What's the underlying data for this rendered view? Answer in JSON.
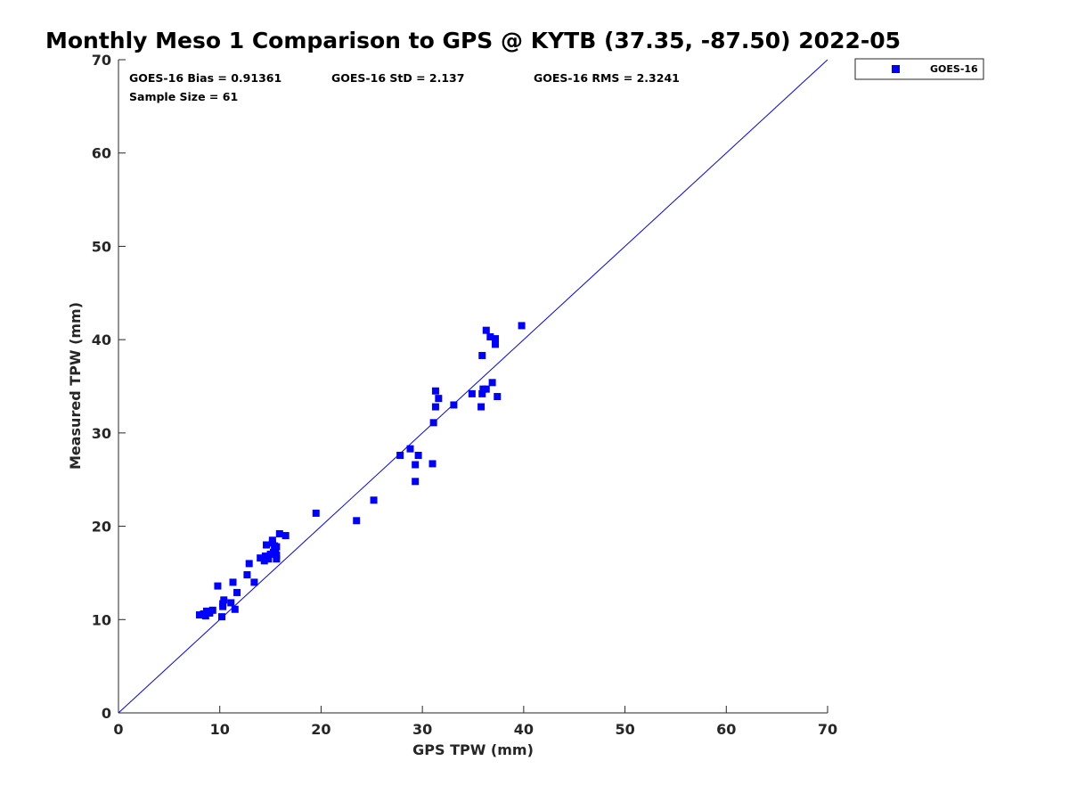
{
  "chart_data": {
    "type": "scatter",
    "title": "Monthly Meso 1 Comparison to GPS @ KYTB (37.35, -87.50) 2022-05",
    "xlabel": "GPS TPW (mm)",
    "ylabel": "Measured TPW (mm)",
    "xlim": [
      0,
      70
    ],
    "ylim": [
      0,
      70
    ],
    "xticks": [
      "0",
      "10",
      "20",
      "30",
      "40",
      "50",
      "60",
      "70"
    ],
    "yticks": [
      "0",
      "10",
      "20",
      "30",
      "40",
      "50",
      "60",
      "70"
    ],
    "grid": false,
    "legend_position": "outside-top-right",
    "reference_line": {
      "type": "one-to-one",
      "color": "#0000ff"
    },
    "stats": {
      "bias": "GOES-16 Bias = 0.91361",
      "std": "GOES-16 StD = 2.137",
      "rms": "GOES-16 RMS = 2.3241",
      "sample_size": "Sample Size = 61"
    },
    "series": [
      {
        "name": "GOES-16",
        "color": "#0000ff",
        "marker": "square",
        "points": [
          [
            8.0,
            10.5
          ],
          [
            8.6,
            10.4
          ],
          [
            8.7,
            10.9
          ],
          [
            9.0,
            10.7
          ],
          [
            9.3,
            11.0
          ],
          [
            9.8,
            13.6
          ],
          [
            10.2,
            10.3
          ],
          [
            10.3,
            11.4
          ],
          [
            10.4,
            12.1
          ],
          [
            11.1,
            11.8
          ],
          [
            11.3,
            14.0
          ],
          [
            11.5,
            11.1
          ],
          [
            11.7,
            12.9
          ],
          [
            12.7,
            14.8
          ],
          [
            12.9,
            16.0
          ],
          [
            13.4,
            14.0
          ],
          [
            14.0,
            16.6
          ],
          [
            14.4,
            16.3
          ],
          [
            14.5,
            16.8
          ],
          [
            14.6,
            18.0
          ],
          [
            15.0,
            17.0
          ],
          [
            15.2,
            18.5
          ],
          [
            15.3,
            17.2
          ],
          [
            15.4,
            17.9
          ],
          [
            15.5,
            17.5
          ],
          [
            15.6,
            16.5
          ],
          [
            15.6,
            16.9
          ],
          [
            15.6,
            17.8
          ],
          [
            15.9,
            19.2
          ],
          [
            16.5,
            19.0
          ],
          [
            19.5,
            21.4
          ],
          [
            23.5,
            20.6
          ],
          [
            25.2,
            22.8
          ],
          [
            27.8,
            27.6
          ],
          [
            28.8,
            28.3
          ],
          [
            29.3,
            26.6
          ],
          [
            29.3,
            24.8
          ],
          [
            29.6,
            27.6
          ],
          [
            31.0,
            26.7
          ],
          [
            31.1,
            31.1
          ],
          [
            31.3,
            34.5
          ],
          [
            31.3,
            32.8
          ],
          [
            31.6,
            33.7
          ],
          [
            33.1,
            33.0
          ],
          [
            34.9,
            34.2
          ],
          [
            35.8,
            32.8
          ],
          [
            35.9,
            38.3
          ],
          [
            35.9,
            34.2
          ],
          [
            36.0,
            34.7
          ],
          [
            36.3,
            34.7
          ],
          [
            36.3,
            41.0
          ],
          [
            36.7,
            40.3
          ],
          [
            36.9,
            35.4
          ],
          [
            37.2,
            39.5
          ],
          [
            37.2,
            40.1
          ],
          [
            37.4,
            33.9
          ],
          [
            39.8,
            41.5
          ],
          [
            14.8,
            16.5
          ],
          [
            15.2,
            18.2
          ],
          [
            10.3,
            11.7
          ],
          [
            8.4,
            10.6
          ]
        ]
      }
    ]
  }
}
